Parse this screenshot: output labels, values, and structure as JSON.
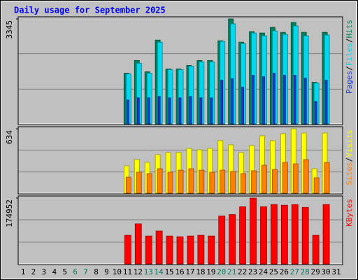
{
  "chart_data": {
    "type": "bar",
    "title": "Daily usage for September 2025",
    "categories": [
      "1",
      "2",
      "3",
      "4",
      "5",
      "6",
      "7",
      "8",
      "9",
      "10",
      "11",
      "12",
      "13",
      "14",
      "15",
      "16",
      "17",
      "18",
      "19",
      "20",
      "21",
      "22",
      "23",
      "24",
      "25",
      "26",
      "27",
      "28",
      "29",
      "30",
      "31"
    ],
    "category_colors": [
      "#000000",
      "#000000",
      "#000000",
      "#000000",
      "#000000",
      "#00805c",
      "#00805c",
      "#000000",
      "#000000",
      "#000000",
      "#000000",
      "#000000",
      "#00805c",
      "#00805c",
      "#000000",
      "#000000",
      "#000000",
      "#000000",
      "#000000",
      "#00805c",
      "#00805c",
      "#000000",
      "#000000",
      "#000000",
      "#000000",
      "#000000",
      "#00805c",
      "#00805c",
      "#000000",
      "#000000",
      "#000000"
    ],
    "separator": "/",
    "panels": [
      {
        "ylim": [
          0,
          3345
        ],
        "yticks": [
          3345
        ],
        "series": [
          {
            "name": "Pages",
            "color": "#1a3ad8",
            "values": [
              0,
              0,
              0,
              0,
              0,
              0,
              0,
              0,
              0,
              0,
              763,
              830,
              830,
              875,
              830,
              830,
              875,
              830,
              830,
              1392,
              1437,
              1167,
              1549,
              1504,
              1616,
              1549,
              1549,
              1459,
              718,
              1392,
              0
            ]
          },
          {
            "name": "Files",
            "color": "#00d8f0",
            "values": [
              0,
              0,
              0,
              0,
              0,
              0,
              0,
              0,
              0,
              0,
              1594,
              1931,
              1616,
              2604,
              1729,
              1729,
              1841,
              1976,
              1976,
              2627,
              3188,
              2559,
              2896,
              2806,
              2963,
              2851,
              3121,
              2806,
              1302,
              2829,
              0
            ]
          },
          {
            "name": "Hits",
            "color": "#00805c",
            "values": [
              0,
              0,
              0,
              0,
              0,
              0,
              0,
              0,
              0,
              0,
              1616,
              2020,
              1661,
              2671,
              1751,
              1751,
              1863,
              2020,
              2020,
              2649,
              3345,
              2604,
              2941,
              2896,
              3076,
              2918,
              3233,
              2918,
              1325,
              2918,
              0
            ]
          }
        ]
      },
      {
        "ylim": [
          0,
          634
        ],
        "yticks": [
          634
        ],
        "series": [
          {
            "name": "Sites",
            "color": "#ff8000",
            "values": [
              0,
              0,
              0,
              0,
              0,
              0,
              0,
              0,
              0,
              0,
              158,
              207,
              193,
              241,
              207,
              227,
              241,
              227,
              207,
              227,
              214,
              193,
              221,
              276,
              234,
              303,
              289,
              331,
              152,
              303,
              0
            ]
          },
          {
            "name": "Visits",
            "color": "#ffff00",
            "values": [
              0,
              0,
              0,
              0,
              0,
              0,
              0,
              0,
              0,
              0,
              269,
              331,
              303,
              379,
              400,
              400,
              441,
              427,
              441,
              517,
              476,
              400,
              469,
              565,
              517,
              586,
              634,
              593,
              241,
              593,
              0
            ]
          }
        ]
      },
      {
        "ylim": [
          0,
          174952
        ],
        "yticks": [
          174952
        ],
        "series": [
          {
            "name": "KBytes",
            "color": "#ff0000",
            "values": [
              0,
              0,
              0,
              0,
              0,
              0,
              0,
              0,
              0,
              0,
              76066,
              106491,
              74164,
              87476,
              74164,
              72262,
              74164,
              76066,
              74164,
              127410,
              131213,
              152132,
              174952,
              152132,
              157837,
              155935,
              157837,
              150230,
              76066,
              157837,
              0
            ]
          }
        ]
      }
    ]
  }
}
